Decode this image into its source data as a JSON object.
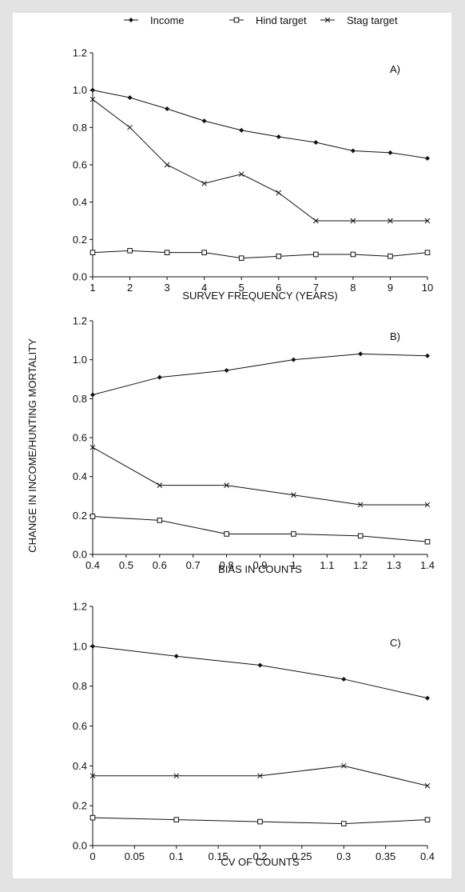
{
  "legend": {
    "entries": [
      {
        "label": "Income",
        "marker": "diamond"
      },
      {
        "label": "Hind target",
        "marker": "square"
      },
      {
        "label": "Stag target",
        "marker": "x"
      }
    ]
  },
  "y_axis_shared_label": "CHANGE IN INCOME/HUNTING MORTALITY",
  "colors": {
    "page_background": "#e3e3e3",
    "panel_background": "#ffffff",
    "ink": "#111111"
  },
  "chart_data": [
    {
      "type": "line",
      "panel_label": "A)",
      "xlabel": "SURVEY FREQUENCY (YEARS)",
      "ylabel": "CHANGE IN INCOME/HUNTING MORTALITY",
      "x": [
        1,
        2,
        3,
        4,
        5,
        6,
        7,
        8,
        9,
        10
      ],
      "x_ticks": [
        1,
        2,
        3,
        4,
        5,
        6,
        7,
        8,
        9,
        10
      ],
      "x_tick_labels": [
        "1",
        "2",
        "3",
        "4",
        "5",
        "6",
        "7",
        "8",
        "9",
        "10"
      ],
      "xlim": [
        1,
        10
      ],
      "ylim": [
        0,
        1.2
      ],
      "y_ticks": [
        0,
        0.2,
        0.4,
        0.6,
        0.8,
        1.0,
        1.2
      ],
      "y_tick_labels": [
        "0.0",
        "0.2",
        "0.4",
        "0.6",
        "0.8",
        "1.0",
        "1.2"
      ],
      "grid": false,
      "series": [
        {
          "name": "Income",
          "marker": "diamond",
          "values": [
            1.0,
            0.96,
            0.9,
            0.835,
            0.785,
            0.75,
            0.72,
            0.675,
            0.665,
            0.635
          ]
        },
        {
          "name": "Hind target",
          "marker": "square",
          "values": [
            0.13,
            0.14,
            0.13,
            0.13,
            0.1,
            0.11,
            0.12,
            0.12,
            0.11,
            0.13
          ]
        },
        {
          "name": "Stag target",
          "marker": "x",
          "values": [
            0.95,
            0.8,
            0.6,
            0.5,
            0.55,
            0.45,
            0.3,
            0.3,
            0.3,
            0.3
          ]
        }
      ]
    },
    {
      "type": "line",
      "panel_label": "B)",
      "xlabel": "BIAS IN COUNTS",
      "ylabel": "CHANGE IN INCOME/HUNTING MORTALITY",
      "x": [
        0.4,
        0.6,
        0.8,
        1.0,
        1.2,
        1.4
      ],
      "x_ticks": [
        0.4,
        0.5,
        0.6,
        0.7,
        0.8,
        0.9,
        1.0,
        1.1,
        1.2,
        1.3,
        1.4
      ],
      "x_tick_labels": [
        "0.4",
        "0.5",
        "0.6",
        "0.7",
        "0.8",
        "0.9",
        "1",
        "1.1",
        "1.2",
        "1.3",
        "1.4"
      ],
      "xlim": [
        0.4,
        1.4
      ],
      "ylim": [
        0,
        1.2
      ],
      "y_ticks": [
        0,
        0.2,
        0.4,
        0.6,
        0.8,
        1.0,
        1.2
      ],
      "y_tick_labels": [
        "0.0",
        "0.2",
        "0.4",
        "0.6",
        "0.8",
        "1.0",
        "1.2"
      ],
      "grid": false,
      "series": [
        {
          "name": "Income",
          "marker": "diamond",
          "values": [
            0.82,
            0.91,
            0.945,
            1.0,
            1.03,
            1.02
          ]
        },
        {
          "name": "Hind target",
          "marker": "square",
          "values": [
            0.195,
            0.175,
            0.105,
            0.105,
            0.095,
            0.065
          ]
        },
        {
          "name": "Stag target",
          "marker": "x",
          "values": [
            0.55,
            0.355,
            0.355,
            0.305,
            0.255,
            0.255
          ]
        }
      ]
    },
    {
      "type": "line",
      "panel_label": "C)",
      "xlabel": "CV OF COUNTS",
      "ylabel": "CHANGE IN INCOME/HUNTING MORTALITY",
      "x": [
        0,
        0.1,
        0.2,
        0.3,
        0.4
      ],
      "x_ticks": [
        0,
        0.05,
        0.1,
        0.15,
        0.2,
        0.25,
        0.3,
        0.35,
        0.4
      ],
      "x_tick_labels": [
        "0",
        "0.05",
        "0.1",
        "0.15",
        "0.2",
        "0.25",
        "0.3",
        "0.35",
        "0.4"
      ],
      "xlim": [
        0,
        0.4
      ],
      "ylim": [
        0,
        1.2
      ],
      "y_ticks": [
        0,
        0.2,
        0.4,
        0.6,
        0.8,
        1.0,
        1.2
      ],
      "y_tick_labels": [
        "0.0",
        "0.2",
        "0.4",
        "0.6",
        "0.8",
        "1.0",
        "1.2"
      ],
      "grid": false,
      "series": [
        {
          "name": "Income",
          "marker": "diamond",
          "values": [
            1.0,
            0.95,
            0.905,
            0.835,
            0.74
          ]
        },
        {
          "name": "Hind target",
          "marker": "square",
          "values": [
            0.14,
            0.13,
            0.12,
            0.11,
            0.13
          ]
        },
        {
          "name": "Stag target",
          "marker": "x",
          "values": [
            0.35,
            0.35,
            0.35,
            0.4,
            0.3
          ]
        }
      ]
    }
  ]
}
